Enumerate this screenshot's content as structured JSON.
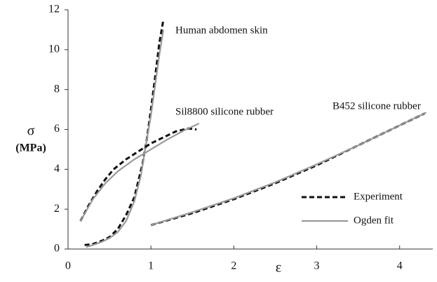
{
  "chart_data": {
    "type": "line",
    "xlabel": "ε",
    "ylabel": [
      "σ",
      "(MPa)"
    ],
    "xlim": [
      0,
      4.4
    ],
    "ylim": [
      0,
      12
    ],
    "xticks": [
      0,
      1,
      2,
      3,
      4
    ],
    "yticks": [
      0,
      2,
      4,
      6,
      8,
      10,
      12
    ],
    "annotations": [
      "Human abdomen skin",
      "Sil8800 silicone rubber",
      "B452 silicone rubber"
    ],
    "series": [
      {
        "name": "Experiment",
        "color": "#111111",
        "dashed": true,
        "x": [
          0.2,
          0.3,
          0.4,
          0.5,
          0.6,
          0.7,
          0.8,
          0.9,
          0.95,
          1.0,
          1.05,
          1.1,
          1.15
        ],
        "values": [
          0.2,
          0.25,
          0.4,
          0.6,
          1.0,
          1.7,
          2.6,
          4.3,
          5.5,
          7.0,
          8.6,
          10.3,
          11.5
        ]
      },
      {
        "name": "Ogden fit",
        "color": "#999999",
        "dashed": false,
        "x": [
          0.22,
          0.3,
          0.4,
          0.5,
          0.6,
          0.7,
          0.8,
          0.88,
          0.93,
          1.0,
          1.05,
          1.1,
          1.15
        ],
        "values": [
          0.1,
          0.2,
          0.35,
          0.55,
          0.85,
          1.4,
          2.4,
          3.7,
          5.0,
          6.7,
          8.2,
          9.7,
          11.0
        ]
      },
      {
        "name": "Experiment",
        "color": "#111111",
        "dashed": true,
        "x": [
          0.15,
          0.25,
          0.35,
          0.45,
          0.55,
          0.7,
          0.85,
          1.0,
          1.15,
          1.3,
          1.45,
          1.55
        ],
        "values": [
          1.4,
          2.2,
          2.9,
          3.5,
          4.0,
          4.5,
          4.9,
          5.3,
          5.6,
          5.9,
          6.05,
          6.0
        ]
      },
      {
        "name": "Ogden fit",
        "color": "#999999",
        "dashed": false,
        "x": [
          0.15,
          0.3,
          0.45,
          0.6,
          0.8,
          1.0,
          1.2,
          1.4,
          1.58
        ],
        "values": [
          1.4,
          2.5,
          3.3,
          3.9,
          4.5,
          5.0,
          5.5,
          5.95,
          6.3
        ]
      },
      {
        "name": "Experiment",
        "color": "#111111",
        "dashed": true,
        "x": [
          1.0,
          1.5,
          2.0,
          2.5,
          3.0,
          3.5,
          4.0,
          4.3
        ],
        "values": [
          1.2,
          1.8,
          2.5,
          3.3,
          4.2,
          5.2,
          6.2,
          6.8
        ]
      },
      {
        "name": "Ogden fit",
        "color": "#999999",
        "dashed": false,
        "x": [
          1.0,
          1.5,
          2.0,
          2.5,
          3.0,
          3.5,
          4.0,
          4.32
        ],
        "values": [
          1.2,
          1.85,
          2.55,
          3.35,
          4.25,
          5.2,
          6.2,
          6.85
        ]
      }
    ]
  }
}
